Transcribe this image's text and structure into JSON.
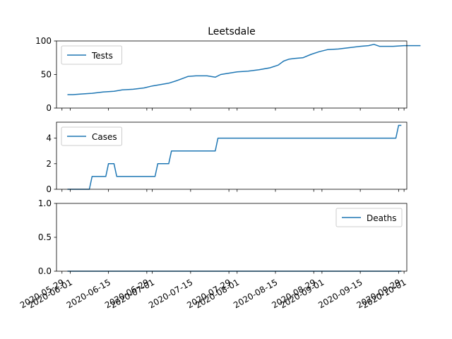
{
  "chart_data": {
    "type": "line",
    "title": "Leetsdale",
    "x_tick_labels": [
      "2020-05-29",
      "2020-06-01",
      "2020-06-15",
      "2020-06-29",
      "2020-07-01",
      "2020-07-15",
      "2020-07-29",
      "2020-08-01",
      "2020-08-15",
      "2020-08-29",
      "2020-09-01",
      "2020-09-15",
      "2020-09-29",
      "2020-10-01"
    ],
    "xlim": [
      "2020-05-27",
      "2020-10-02"
    ],
    "panels": [
      {
        "series": [
          {
            "name": "Tests",
            "color": "#1f77b4",
            "points": [
              [
                "2020-05-31",
                20
              ],
              [
                "2020-06-02",
                20
              ],
              [
                "2020-06-05",
                21
              ],
              [
                "2020-06-09",
                22
              ],
              [
                "2020-06-13",
                24
              ],
              [
                "2020-06-17",
                25
              ],
              [
                "2020-06-20",
                27
              ],
              [
                "2020-06-24",
                28
              ],
              [
                "2020-06-28",
                30
              ],
              [
                "2020-07-01",
                33
              ],
              [
                "2020-07-04",
                35
              ],
              [
                "2020-07-07",
                37
              ],
              [
                "2020-07-10",
                41
              ],
              [
                "2020-07-14",
                47
              ],
              [
                "2020-07-17",
                48
              ],
              [
                "2020-07-21",
                48
              ],
              [
                "2020-07-24",
                46
              ],
              [
                "2020-07-26",
                50
              ],
              [
                "2020-07-29",
                52
              ],
              [
                "2020-08-01",
                54
              ],
              [
                "2020-08-05",
                55
              ],
              [
                "2020-08-09",
                57
              ],
              [
                "2020-08-13",
                60
              ],
              [
                "2020-08-16",
                64
              ],
              [
                "2020-08-18",
                70
              ],
              [
                "2020-08-20",
                73
              ],
              [
                "2020-08-22",
                74
              ],
              [
                "2020-08-25",
                75
              ],
              [
                "2020-08-28",
                80
              ],
              [
                "2020-08-31",
                84
              ],
              [
                "2020-09-03",
                87
              ],
              [
                "2020-09-07",
                88
              ],
              [
                "2020-09-11",
                90
              ],
              [
                "2020-09-15",
                92
              ],
              [
                "2020-09-18",
                93
              ],
              [
                "2020-09-20",
                95
              ],
              [
                "2020-09-22",
                92
              ],
              [
                "2020-09-27",
                92
              ],
              [
                "2020-10-01",
                93
              ],
              [
                "2020-10-04",
                93
              ],
              [
                "2020-10-07",
                93
              ]
            ]
          }
        ],
        "ylim": [
          0,
          100
        ],
        "y_ticks": [
          0,
          50,
          100
        ],
        "legend_loc": "upper left"
      },
      {
        "series": [
          {
            "name": "Cases",
            "color": "#1f77b4",
            "points": [
              [
                "2020-05-31",
                0
              ],
              [
                "2020-06-08",
                0
              ],
              [
                "2020-06-09",
                1
              ],
              [
                "2020-06-14",
                1
              ],
              [
                "2020-06-15",
                2
              ],
              [
                "2020-06-17",
                2
              ],
              [
                "2020-06-18",
                1
              ],
              [
                "2020-07-02",
                1
              ],
              [
                "2020-07-03",
                2
              ],
              [
                "2020-07-07",
                2
              ],
              [
                "2020-07-08",
                3
              ],
              [
                "2020-07-24",
                3
              ],
              [
                "2020-07-25",
                4
              ],
              [
                "2020-09-28",
                4
              ],
              [
                "2020-09-29",
                5
              ],
              [
                "2020-09-30",
                5
              ]
            ]
          }
        ],
        "ylim": [
          0,
          5.25
        ],
        "y_ticks": [
          0,
          2,
          4
        ],
        "legend_loc": "upper left"
      },
      {
        "series": [
          {
            "name": "Deaths",
            "color": "#1f77b4",
            "points": [
              [
                "2020-05-31",
                0
              ],
              [
                "2020-09-30",
                0
              ]
            ]
          }
        ],
        "ylim": [
          0,
          1
        ],
        "y_ticks": [
          0,
          0.5,
          1
        ],
        "y_tick_labels": [
          "0.0",
          "0.5",
          "1.0"
        ],
        "legend_loc": "upper right"
      }
    ]
  }
}
